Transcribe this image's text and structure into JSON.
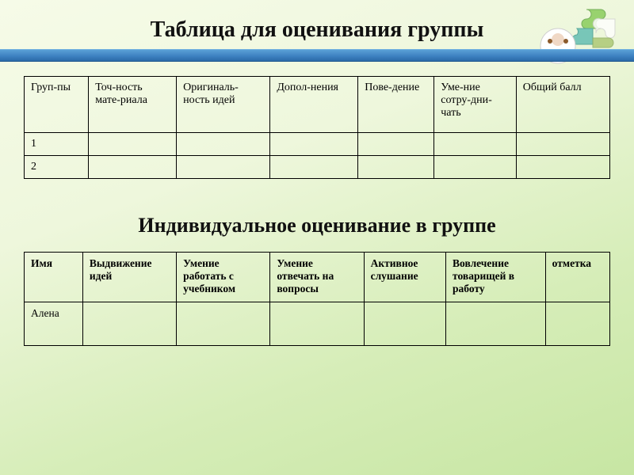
{
  "titles": {
    "main": "Таблица для оценивания группы",
    "sub": "Индивидуальное оценивание в группе"
  },
  "table1": {
    "columns": [
      "Груп-пы",
      "Точ-ность мате-риала",
      "Оригиналь-ность идей",
      "Допол-нения",
      "Пове-дение",
      "Уме-ние сотру-дни-чать",
      "Общий балл"
    ],
    "rows": [
      {
        "label": "1",
        "cells": [
          "",
          "",
          "",
          "",
          "",
          ""
        ]
      },
      {
        "label": "2",
        "cells": [
          "",
          "",
          "",
          "",
          "",
          ""
        ]
      }
    ],
    "column_widths_pct": [
      11,
      15,
      16,
      15,
      13,
      14,
      16
    ]
  },
  "table2": {
    "columns": [
      "Имя",
      "Выдвижение идей",
      "Умение работать с учебником",
      "Умение отвечать на вопросы",
      "Активное слушание",
      "Вовлечение товарищей в работу",
      "отметка"
    ],
    "rows": [
      {
        "name": "Алена",
        "cells": [
          "",
          "",
          "",
          "",
          "",
          ""
        ]
      }
    ],
    "column_widths_pct": [
      10,
      16,
      16,
      16,
      14,
      17,
      11
    ]
  },
  "colors": {
    "bar_top": "#5aa0d6",
    "bar_bottom": "#2a6aa8",
    "bg_top": "#f6fbe8",
    "bg_bottom": "#c7e6a3",
    "puzzle_green": "#8fcf63",
    "puzzle_teal": "#6cc1b5",
    "puzzle_white": "#ffffff",
    "puzzle_olive": "#a6c46a",
    "photo_placeholder": "#e6e6e6"
  }
}
